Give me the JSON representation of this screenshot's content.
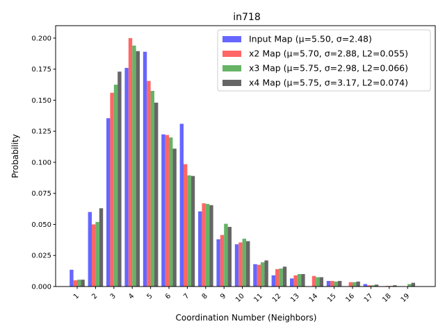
{
  "chart_data": {
    "type": "bar",
    "title": "in718",
    "xlabel": "Coordination Number  (Neighbors)",
    "ylabel": "Probability",
    "categories": [
      "1",
      "2",
      "3",
      "4",
      "5",
      "6",
      "7",
      "8",
      "9",
      "10",
      "11",
      "12",
      "13",
      "14",
      "15",
      "16",
      "17",
      "18",
      "19"
    ],
    "ylim": [
      0,
      0.21
    ],
    "yticks": [
      0.0,
      0.025,
      0.05,
      0.075,
      0.1,
      0.125,
      0.15,
      0.175,
      0.2
    ],
    "ytick_labels": [
      "0.000",
      "0.025",
      "0.050",
      "0.075",
      "0.100",
      "0.125",
      "0.150",
      "0.175",
      "0.200"
    ],
    "grid": false,
    "legend_position": "top-right",
    "series": [
      {
        "name": "Input Map (μ=5.50, σ=2.48)",
        "color": "#6666ff",
        "values": [
          0.0135,
          0.06,
          0.1355,
          0.176,
          0.189,
          0.1225,
          0.131,
          0.0605,
          0.038,
          0.034,
          0.018,
          0.009,
          0.0065,
          0.0,
          0.0045,
          0.0,
          0.002,
          0.0,
          0.0
        ]
      },
      {
        "name": "x2 Map (μ=5.70, σ=2.88, L2=0.055)",
        "color": "#ff6666",
        "values": [
          0.005,
          0.05,
          0.156,
          0.2,
          0.1655,
          0.122,
          0.0985,
          0.067,
          0.0415,
          0.0355,
          0.0175,
          0.014,
          0.009,
          0.0085,
          0.0045,
          0.0035,
          0.001,
          0.0005,
          0.0
        ]
      },
      {
        "name": "x3 Map (μ=5.75, σ=2.98, L2=0.066)",
        "color": "#66b366",
        "values": [
          0.0055,
          0.052,
          0.1625,
          0.194,
          0.1575,
          0.12,
          0.0895,
          0.0665,
          0.0505,
          0.0385,
          0.0195,
          0.0145,
          0.01,
          0.0075,
          0.004,
          0.0035,
          0.001,
          0.0005,
          0.002
        ]
      },
      {
        "name": "x4 Map (μ=5.75, σ=3.17, L2=0.074)",
        "color": "#666666",
        "values": [
          0.0055,
          0.063,
          0.173,
          0.1895,
          0.148,
          0.111,
          0.089,
          0.0655,
          0.048,
          0.0365,
          0.021,
          0.016,
          0.01,
          0.0075,
          0.0045,
          0.004,
          0.0015,
          0.001,
          0.003
        ]
      }
    ]
  }
}
